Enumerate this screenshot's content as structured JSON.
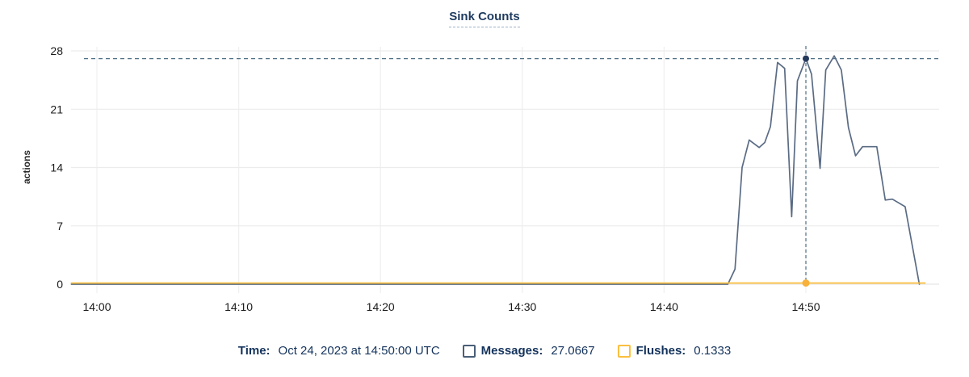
{
  "title": "Sink Counts",
  "chart_data": {
    "type": "line",
    "title": "Sink Counts",
    "xlabel": "",
    "ylabel": "actions",
    "ylim": [
      0,
      28
    ],
    "y_ticks": [
      0,
      7,
      14,
      21,
      28
    ],
    "x_ticks": [
      "14:00",
      "14:10",
      "14:20",
      "14:30",
      "14:40",
      "14:50"
    ],
    "x_tick_minutes": [
      0,
      10,
      20,
      30,
      40,
      50
    ],
    "grid": "on",
    "legend_position": "bottom",
    "series": [
      {
        "name": "Messages",
        "color": "#5a6b84",
        "points": [
          [
            -1.8,
            0
          ],
          [
            44.5,
            0
          ],
          [
            45.0,
            1.8
          ],
          [
            45.5,
            14.0
          ],
          [
            46.0,
            17.3
          ],
          [
            46.7,
            16.4
          ],
          [
            47.1,
            17.0
          ],
          [
            47.5,
            18.9
          ],
          [
            48.0,
            26.6
          ],
          [
            48.5,
            25.9
          ],
          [
            49.0,
            8.1
          ],
          [
            49.4,
            24.4
          ],
          [
            50.0,
            27.0667
          ],
          [
            50.4,
            25.2
          ],
          [
            51.0,
            13.9
          ],
          [
            51.4,
            25.7
          ],
          [
            52.0,
            27.4
          ],
          [
            52.5,
            25.7
          ],
          [
            53.0,
            18.8
          ],
          [
            53.5,
            15.4
          ],
          [
            54.0,
            16.5
          ],
          [
            55.0,
            16.5
          ],
          [
            55.6,
            10.1
          ],
          [
            56.1,
            10.2
          ],
          [
            57.0,
            9.3
          ],
          [
            58.0,
            0
          ]
        ]
      },
      {
        "name": "Flushes",
        "color": "#fbbf3f",
        "points": [
          [
            -1.8,
            0.1333
          ],
          [
            58.4,
            0.1333
          ]
        ]
      }
    ],
    "crosshair": {
      "time_label": "14:50",
      "minutes_from_start": 50,
      "messages_value": 27.0667,
      "flushes_value": 0.1333,
      "dash_color": "#517187",
      "messages_dot_color": "#24395c",
      "flushes_dot_color": "#f8b13a"
    }
  },
  "tooltip": {
    "time_label": "Time:",
    "time_value": "Oct 24, 2023 at 14:50:00 UTC",
    "messages_label": "Messages:",
    "messages_value": "27.0667",
    "flushes_label": "Flushes:",
    "flushes_value": "0.1333"
  },
  "colors": {
    "messages": "#5a6b84",
    "messages_swatch_border": "#4a5f78",
    "flushes": "#fbbf3f",
    "gridline": "#ececec",
    "text_navy": "#14335c"
  }
}
